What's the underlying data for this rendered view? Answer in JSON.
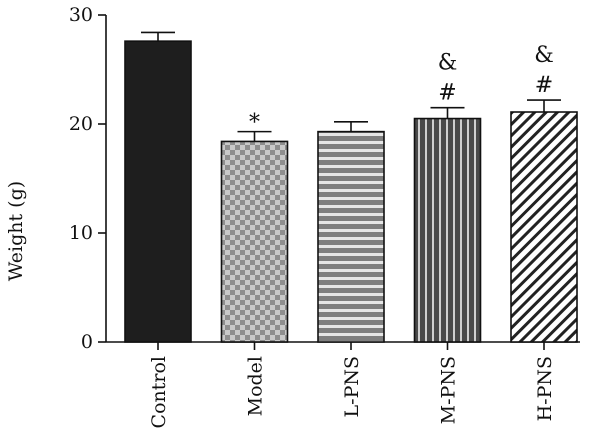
{
  "chart_data": {
    "type": "bar",
    "title": "",
    "xlabel": "",
    "ylabel": "Weight (g)",
    "ylim": [
      0,
      30
    ],
    "yticks": [
      0,
      10,
      20,
      30
    ],
    "grid": false,
    "categories": [
      "Control",
      "Model",
      "L-PNS",
      "M-PNS",
      "H-PNS"
    ],
    "values": [
      27.6,
      18.4,
      19.3,
      20.5,
      21.1
    ],
    "errors": [
      0.8,
      0.9,
      0.9,
      1.0,
      1.1
    ],
    "annotations": [
      [],
      [
        "*"
      ],
      [],
      [
        "#",
        "&"
      ],
      [
        "#",
        "&"
      ]
    ],
    "fills": [
      "solid-black",
      "checkerboard-gray",
      "horizontal-stripes-gray",
      "vertical-stripes-dark",
      "diagonal-hatch"
    ],
    "colors": {
      "solid": "#1e1e1e",
      "gray": "#8e8e8e",
      "dark": "#4a4a4a",
      "hatch": "#222222"
    }
  }
}
